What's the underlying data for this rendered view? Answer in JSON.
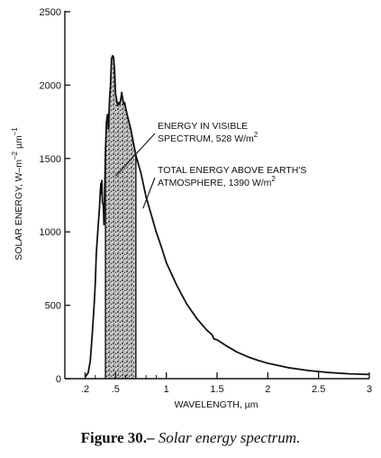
{
  "chart_data": {
    "type": "line",
    "xlabel": "WAVELENGTH, µm",
    "ylabel": "SOLAR ENERGY, W–m",
    "ylabel_sup1": "–2",
    "ylabel_mid": " µm",
    "ylabel_sup2": "–1",
    "xlim": [
      0.0,
      3.0
    ],
    "ylim": [
      0,
      2500
    ],
    "x_ticks": [
      0.2,
      0.5,
      1,
      1.5,
      2,
      2.5,
      3
    ],
    "x_tick_labels": [
      ".2",
      ".5",
      "1",
      "1.5",
      "2",
      "2.5",
      "3"
    ],
    "x_minor_ticks": [
      0.3,
      0.4,
      0.6,
      0.7,
      0.8,
      0.9
    ],
    "y_ticks": [
      0,
      500,
      1000,
      1500,
      2000,
      2500
    ],
    "y_tick_labels": [
      "0",
      "500",
      "1000",
      "1500",
      "2000",
      "2500"
    ],
    "visible_band": [
      0.4,
      0.7
    ],
    "series": [
      {
        "points": [
          [
            0.2,
            10
          ],
          [
            0.23,
            40
          ],
          [
            0.25,
            120
          ],
          [
            0.27,
            300
          ],
          [
            0.29,
            520
          ],
          [
            0.3,
            650
          ],
          [
            0.31,
            850
          ],
          [
            0.32,
            960
          ],
          [
            0.33,
            1060
          ],
          [
            0.34,
            1150
          ],
          [
            0.35,
            1280
          ],
          [
            0.355,
            1330
          ],
          [
            0.36,
            1260
          ],
          [
            0.365,
            1350
          ],
          [
            0.37,
            1200
          ],
          [
            0.38,
            1180
          ],
          [
            0.385,
            1050
          ],
          [
            0.39,
            1180
          ],
          [
            0.4,
            1550
          ],
          [
            0.41,
            1750
          ],
          [
            0.42,
            1800
          ],
          [
            0.43,
            1700
          ],
          [
            0.44,
            1900
          ],
          [
            0.45,
            2000
          ],
          [
            0.46,
            2180
          ],
          [
            0.47,
            2200
          ],
          [
            0.48,
            2190
          ],
          [
            0.49,
            2100
          ],
          [
            0.5,
            1940
          ],
          [
            0.51,
            1900
          ],
          [
            0.52,
            1860
          ],
          [
            0.53,
            1880
          ],
          [
            0.54,
            1870
          ],
          [
            0.55,
            1900
          ],
          [
            0.56,
            1950
          ],
          [
            0.57,
            1910
          ],
          [
            0.58,
            1870
          ],
          [
            0.59,
            1880
          ],
          [
            0.6,
            1840
          ],
          [
            0.62,
            1780
          ],
          [
            0.65,
            1700
          ],
          [
            0.7,
            1520
          ],
          [
            0.75,
            1400
          ],
          [
            0.8,
            1240
          ],
          [
            0.85,
            1120
          ],
          [
            0.9,
            1000
          ],
          [
            0.95,
            900
          ],
          [
            1.0,
            790
          ],
          [
            1.1,
            640
          ],
          [
            1.2,
            510
          ],
          [
            1.3,
            410
          ],
          [
            1.4,
            330
          ],
          [
            1.45,
            300
          ],
          [
            1.47,
            270
          ],
          [
            1.5,
            265
          ],
          [
            1.6,
            220
          ],
          [
            1.7,
            180
          ],
          [
            1.8,
            150
          ],
          [
            1.9,
            125
          ],
          [
            2.0,
            105
          ],
          [
            2.2,
            75
          ],
          [
            2.4,
            55
          ],
          [
            2.6,
            42
          ],
          [
            2.8,
            33
          ],
          [
            3.0,
            28
          ]
        ]
      }
    ],
    "annotations": [
      {
        "lines": [
          "ENERGY IN VISIBLE",
          "SPECTRUM, 528 W/m"
        ],
        "sup": "2",
        "arrow_to": [
          0.5,
          1380
        ]
      },
      {
        "lines": [
          "TOTAL ENERGY ABOVE EARTH'S",
          "ATMOSPHERE, 1390 W/m"
        ],
        "sup": "2",
        "arrow_to": [
          0.77,
          1160
        ]
      }
    ],
    "grid": false
  },
  "caption": {
    "figure_label": "Figure 30.–",
    "description": " Solar energy spectrum."
  },
  "colors": {
    "ink": "#111111",
    "paper": "#ffffff"
  }
}
